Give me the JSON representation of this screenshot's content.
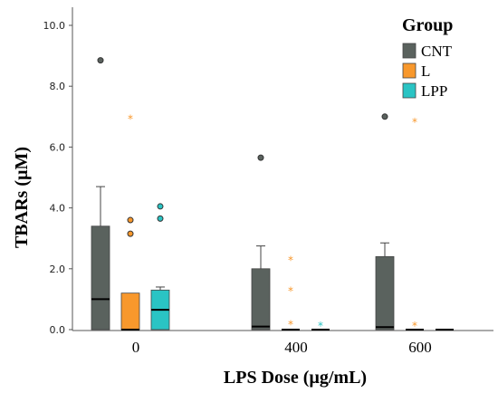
{
  "chart_data": {
    "type": "boxplot",
    "xlabel": "LPS Dose (µg/mL)",
    "ylabel": "TBARs (µM)",
    "ylim": [
      0,
      10
    ],
    "yticks": [
      "0.0",
      "2.0",
      "4.0",
      "6.0",
      "8.0",
      "10.0"
    ],
    "categories": [
      "0",
      "400",
      "600"
    ],
    "legend": {
      "title": "Group",
      "position": "top-right"
    },
    "series": [
      {
        "name": "CNT",
        "color": "#5a625e",
        "boxes": [
          {
            "min": 0,
            "q1": 0,
            "median": 1.0,
            "q3": 3.4,
            "max": 4.7,
            "outliers": [
              8.85
            ],
            "extremes": []
          },
          {
            "min": 0,
            "q1": 0,
            "median": 0.1,
            "q3": 2.0,
            "max": 2.75,
            "outliers": [
              5.65
            ],
            "extremes": []
          },
          {
            "min": 0,
            "q1": 0,
            "median": 0.08,
            "q3": 2.4,
            "max": 2.85,
            "outliers": [
              7.0
            ],
            "extremes": []
          }
        ]
      },
      {
        "name": "L",
        "color": "#f8982c",
        "boxes": [
          {
            "min": 0,
            "q1": 0,
            "median": 0,
            "q3": 1.2,
            "max": 1.2,
            "outliers": [
              3.6,
              3.15
            ],
            "extremes": [
              6.95
            ]
          },
          {
            "min": 0,
            "q1": 0,
            "median": 0,
            "q3": 0,
            "max": 0,
            "outliers": [],
            "extremes": [
              2.3,
              1.3,
              0.2
            ]
          },
          {
            "min": 0,
            "q1": 0,
            "median": 0,
            "q3": 0,
            "max": 0,
            "outliers": [],
            "extremes": [
              6.85,
              0.15
            ]
          }
        ]
      },
      {
        "name": "LPP",
        "color": "#2ac4c4",
        "boxes": [
          {
            "min": 0,
            "q1": 0,
            "median": 0.65,
            "q3": 1.3,
            "max": 1.4,
            "outliers": [
              4.05,
              3.65
            ],
            "extremes": []
          },
          {
            "min": 0,
            "q1": 0,
            "median": 0,
            "q3": 0,
            "max": 0,
            "outliers": [],
            "extremes": [
              0.15
            ]
          },
          {
            "min": 0,
            "q1": 0,
            "median": 0,
            "q3": 0,
            "max": 0,
            "outliers": [],
            "extremes": []
          }
        ]
      }
    ]
  }
}
